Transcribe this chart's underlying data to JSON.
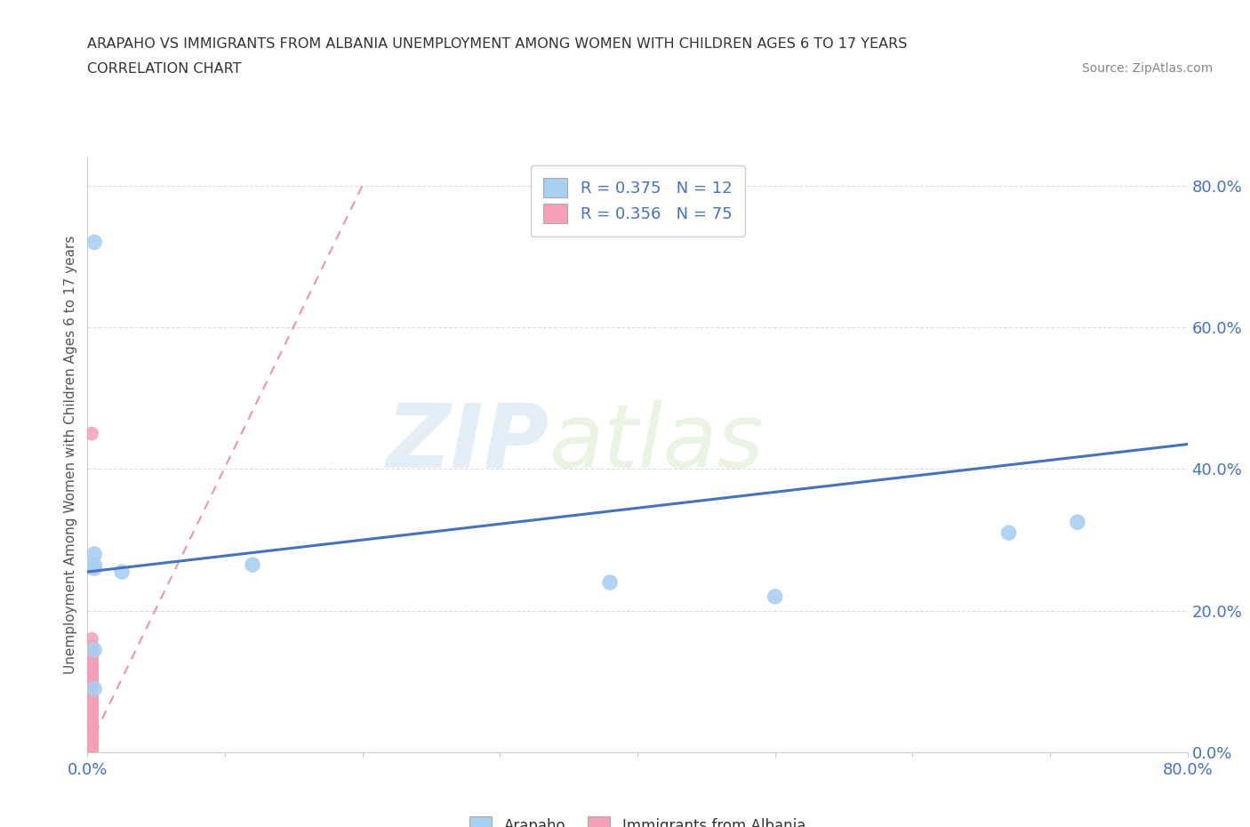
{
  "title_line1": "ARAPAHO VS IMMIGRANTS FROM ALBANIA UNEMPLOYMENT AMONG WOMEN WITH CHILDREN AGES 6 TO 17 YEARS",
  "title_line2": "CORRELATION CHART",
  "source_text": "Source: ZipAtlas.com",
  "ylabel": "Unemployment Among Women with Children Ages 6 to 17 years",
  "xlim": [
    0.0,
    0.8
  ],
  "ylim": [
    0.0,
    0.84
  ],
  "x_ticks": [
    0.0,
    0.1,
    0.2,
    0.3,
    0.4,
    0.5,
    0.6,
    0.7,
    0.8
  ],
  "x_tick_labels": [
    "0.0%",
    "",
    "",
    "",
    "",
    "",
    "",
    "",
    "80.0%"
  ],
  "y_ticks": [
    0.0,
    0.2,
    0.4,
    0.6,
    0.8
  ],
  "y_tick_labels": [
    "0.0%",
    "20.0%",
    "40.0%",
    "60.0%",
    "80.0%"
  ],
  "arapaho_color": "#a8d0f0",
  "albania_color": "#f5a0b8",
  "arapaho_R": 0.375,
  "arapaho_N": 12,
  "albania_R": 0.356,
  "albania_N": 75,
  "legend_label1": "Arapaho",
  "legend_label2": "Immigrants from Albania",
  "watermark_zip": "ZIP",
  "watermark_atlas": "atlas",
  "arapaho_x": [
    0.005,
    0.005,
    0.005,
    0.005,
    0.025,
    0.12,
    0.38,
    0.5,
    0.67,
    0.72,
    0.005,
    0.005
  ],
  "arapaho_y": [
    0.72,
    0.28,
    0.265,
    0.26,
    0.255,
    0.265,
    0.24,
    0.22,
    0.31,
    0.325,
    0.145,
    0.09
  ],
  "albania_x": [
    0.003,
    0.003,
    0.003,
    0.003,
    0.003,
    0.003,
    0.003,
    0.003,
    0.003,
    0.003,
    0.003,
    0.003,
    0.003,
    0.003,
    0.003,
    0.003,
    0.003,
    0.003,
    0.003,
    0.003,
    0.003,
    0.003,
    0.003,
    0.003,
    0.003,
    0.003,
    0.003,
    0.003,
    0.003,
    0.003,
    0.003,
    0.003,
    0.003,
    0.003,
    0.003,
    0.003,
    0.003,
    0.003,
    0.003,
    0.003,
    0.003,
    0.003,
    0.003,
    0.003,
    0.003,
    0.003,
    0.003,
    0.003,
    0.003,
    0.003,
    0.003,
    0.003,
    0.003,
    0.003,
    0.003,
    0.003,
    0.003,
    0.003,
    0.003,
    0.003,
    0.003,
    0.003,
    0.003,
    0.003,
    0.003,
    0.003,
    0.003,
    0.003,
    0.003,
    0.003,
    0.003,
    0.003,
    0.003,
    0.003,
    0.003
  ],
  "albania_y": [
    0.0,
    0.0,
    0.0,
    0.005,
    0.005,
    0.008,
    0.01,
    0.01,
    0.012,
    0.015,
    0.015,
    0.018,
    0.02,
    0.02,
    0.022,
    0.025,
    0.025,
    0.028,
    0.03,
    0.03,
    0.032,
    0.035,
    0.038,
    0.04,
    0.04,
    0.042,
    0.045,
    0.045,
    0.048,
    0.05,
    0.05,
    0.052,
    0.055,
    0.058,
    0.06,
    0.06,
    0.062,
    0.065,
    0.065,
    0.068,
    0.07,
    0.07,
    0.072,
    0.075,
    0.078,
    0.08,
    0.082,
    0.085,
    0.088,
    0.09,
    0.092,
    0.095,
    0.098,
    0.1,
    0.1,
    0.102,
    0.105,
    0.108,
    0.11,
    0.112,
    0.115,
    0.118,
    0.12,
    0.122,
    0.125,
    0.128,
    0.13,
    0.132,
    0.135,
    0.14,
    0.145,
    0.15,
    0.16,
    0.26,
    0.45
  ],
  "arapaho_line_x": [
    0.0,
    0.8
  ],
  "arapaho_line_y": [
    0.255,
    0.435
  ],
  "albania_line_x": [
    0.0,
    0.2
  ],
  "albania_line_y": [
    0.005,
    0.8
  ],
  "grid_color": "#dddddd",
  "grid_linestyle": "--",
  "background_color": "#ffffff",
  "tick_color": "#4472c4",
  "ylabel_color": "#555555",
  "title_color": "#333333",
  "source_color": "#888888",
  "arapaho_line_color": "#4472c4",
  "albania_line_color": "#e87090",
  "legend_edge_color": "#cccccc"
}
